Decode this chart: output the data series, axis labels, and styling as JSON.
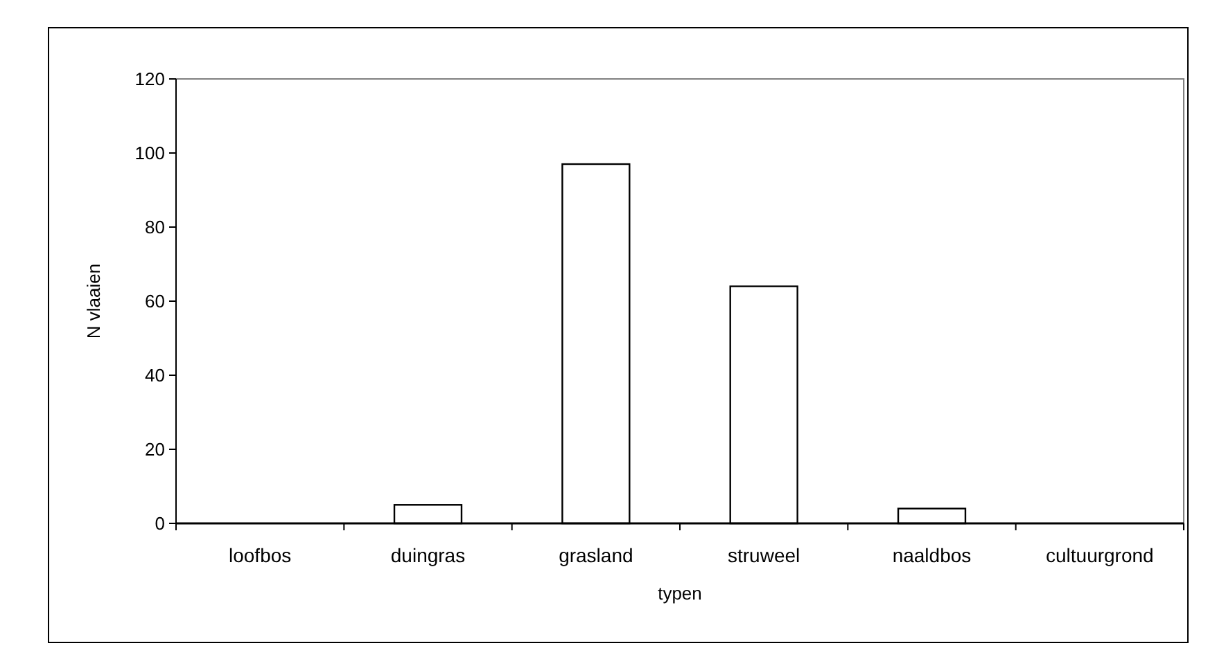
{
  "chart_data": {
    "type": "bar",
    "xlabel": "typen",
    "ylabel": "N vlaaien",
    "categories": [
      "loofbos",
      "duingras",
      "grasland",
      "struweel",
      "naaldbos",
      "cultuurgrond"
    ],
    "values": [
      0,
      5,
      97,
      64,
      4,
      0
    ],
    "color": "#ffffff",
    "ylim": [
      0,
      120
    ],
    "yticks": [
      0,
      20,
      40,
      60,
      80,
      100,
      120
    ],
    "grid": false
  }
}
